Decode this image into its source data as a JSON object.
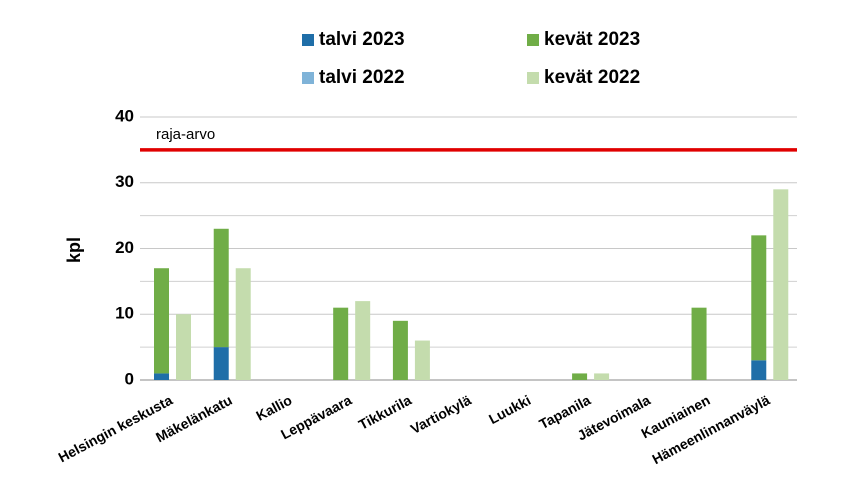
{
  "chart_data": {
    "type": "bar",
    "y_label": "kpl",
    "categories": [
      "Helsingin keskusta",
      "Mäkelänkatu",
      "Kallio",
      "Leppävaara",
      "Tikkurila",
      "Vartiokylä",
      "Luukki",
      "Tapanila",
      "Jätevoimala",
      "Kauniainen",
      "Hämeenlinnanväylä"
    ],
    "series": [
      {
        "name": "talvi 2023",
        "color": "#1f6ea8",
        "group": 0,
        "values": [
          1,
          5,
          0,
          0,
          0,
          0,
          0,
          0,
          0,
          0,
          3
        ]
      },
      {
        "name": "kevät 2023",
        "color": "#70ad47",
        "group": 0,
        "values": [
          16,
          18,
          0,
          11,
          9,
          0,
          0,
          1,
          0,
          11,
          19
        ]
      },
      {
        "name": "talvi 2022",
        "color": "#7fb3d8",
        "group": 1,
        "values": [
          0,
          0,
          0,
          0,
          0,
          0,
          0,
          0,
          0,
          0,
          0
        ]
      },
      {
        "name": "kevät 2022",
        "color": "#c4dcad",
        "group": 1,
        "values": [
          10,
          17,
          0,
          12,
          6,
          0,
          0,
          1,
          0,
          0,
          29
        ]
      }
    ],
    "ylim": [
      0,
      40
    ],
    "yticks": [
      0,
      10,
      20,
      30,
      40
    ],
    "minor_yticks": [
      5,
      15,
      25,
      35
    ],
    "grid": true,
    "reference_line": {
      "text": "raja-arvo",
      "value": 35,
      "color": "#e00000"
    }
  }
}
